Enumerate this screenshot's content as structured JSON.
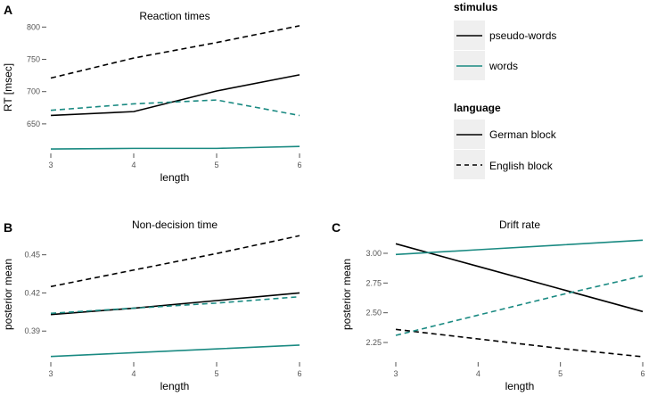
{
  "colors": {
    "pseudo": "#000000",
    "words": "#1a8a82",
    "key_bg": "#efefef",
    "tick": "#555555"
  },
  "chart_data": [
    {
      "id": "A",
      "type": "line",
      "title": "Reaction times",
      "xlabel": "length",
      "ylabel": "RT [msec]",
      "x": [
        3,
        4,
        5,
        6
      ],
      "xticks": [
        "3",
        "4",
        "5",
        "6"
      ],
      "ylim": [
        607,
        806
      ],
      "yticks": [
        650,
        700,
        750,
        800
      ],
      "ytick_labels": [
        "650",
        "700",
        "750",
        "800"
      ],
      "series": [
        {
          "name": "pseudo-words / English block",
          "stimulus": "pseudo-words",
          "language": "English block",
          "values": [
            721,
            752,
            776,
            802
          ]
        },
        {
          "name": "pseudo-words / German block",
          "stimulus": "pseudo-words",
          "language": "German block",
          "values": [
            663,
            669,
            701,
            726
          ]
        },
        {
          "name": "words / English block",
          "stimulus": "words",
          "language": "English block",
          "values": [
            671,
            681,
            687,
            663
          ]
        },
        {
          "name": "words / German block",
          "stimulus": "words",
          "language": "German block",
          "values": [
            611,
            612,
            612,
            615
          ]
        }
      ]
    },
    {
      "id": "B",
      "type": "line",
      "title": "Non-decision time",
      "xlabel": "length",
      "ylabel": "posterior mean",
      "x": [
        3,
        4,
        5,
        6
      ],
      "xticks": [
        "3",
        "4",
        "5",
        "6"
      ],
      "ylim": [
        0.367,
        0.468
      ],
      "yticks": [
        0.39,
        0.42,
        0.45
      ],
      "ytick_labels": [
        "0.39",
        "0.42",
        "0.45"
      ],
      "series": [
        {
          "name": "pseudo-words / English block",
          "stimulus": "pseudo-words",
          "language": "English block",
          "values": [
            0.425,
            0.438,
            0.451,
            0.465
          ]
        },
        {
          "name": "pseudo-words / German block",
          "stimulus": "pseudo-words",
          "language": "German block",
          "values": [
            0.403,
            0.408,
            0.414,
            0.42
          ]
        },
        {
          "name": "words / English block",
          "stimulus": "words",
          "language": "English block",
          "values": [
            0.404,
            0.408,
            0.412,
            0.417
          ]
        },
        {
          "name": "words / German block",
          "stimulus": "words",
          "language": "German block",
          "values": [
            0.37,
            0.373,
            0.376,
            0.379
          ]
        }
      ]
    },
    {
      "id": "C",
      "type": "line",
      "title": "Drift rate",
      "xlabel": "length",
      "ylabel": "posterior mean",
      "x": [
        3,
        4,
        5,
        6
      ],
      "xticks": [
        "3",
        "4",
        "5",
        "6"
      ],
      "ylim": [
        2.1,
        3.18
      ],
      "yticks": [
        2.25,
        2.5,
        2.75,
        3.0
      ],
      "ytick_labels": [
        "2.25",
        "2.50",
        "2.75",
        "3.00"
      ],
      "series": [
        {
          "name": "pseudo-words / English block",
          "stimulus": "pseudo-words",
          "language": "English block",
          "values": [
            2.36,
            2.28,
            2.2,
            2.13
          ]
        },
        {
          "name": "pseudo-words / German block",
          "stimulus": "pseudo-words",
          "language": "German block",
          "values": [
            3.08,
            2.89,
            2.7,
            2.51
          ]
        },
        {
          "name": "words / English block",
          "stimulus": "words",
          "language": "English block",
          "values": [
            2.31,
            2.48,
            2.65,
            2.81
          ]
        },
        {
          "name": "words / German block",
          "stimulus": "words",
          "language": "German block",
          "values": [
            2.99,
            3.03,
            3.07,
            3.11
          ]
        }
      ]
    }
  ],
  "legend": {
    "stimulus": {
      "title": "stimulus",
      "items": [
        {
          "label": "pseudo-words",
          "stimulus": "pseudo-words"
        },
        {
          "label": "words",
          "stimulus": "words"
        }
      ]
    },
    "language": {
      "title": "language",
      "items": [
        {
          "label": "German block",
          "language": "German block"
        },
        {
          "label": "English block",
          "language": "English block"
        }
      ]
    }
  }
}
